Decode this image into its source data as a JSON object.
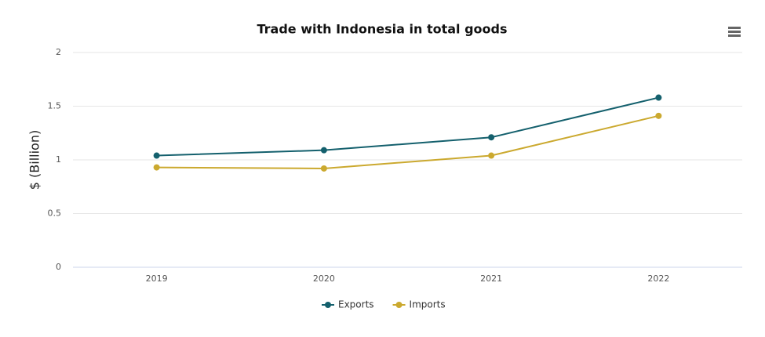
{
  "chart_data": {
    "type": "line",
    "title": "Trade with Indonesia in total goods",
    "y_label": "$ (Billion)",
    "categories": [
      "2019",
      "2020",
      "2021",
      "2022"
    ],
    "series": [
      {
        "name": "Exports",
        "color": "#14606d",
        "values": [
          1.04,
          1.09,
          1.21,
          1.58
        ]
      },
      {
        "name": "Imports",
        "color": "#cba92f",
        "values": [
          0.93,
          0.92,
          1.04,
          1.41
        ]
      }
    ],
    "ylim": [
      0,
      2
    ],
    "yticks": [
      0,
      0.5,
      1,
      1.5,
      2
    ],
    "grid": true,
    "legend": "bottom"
  }
}
